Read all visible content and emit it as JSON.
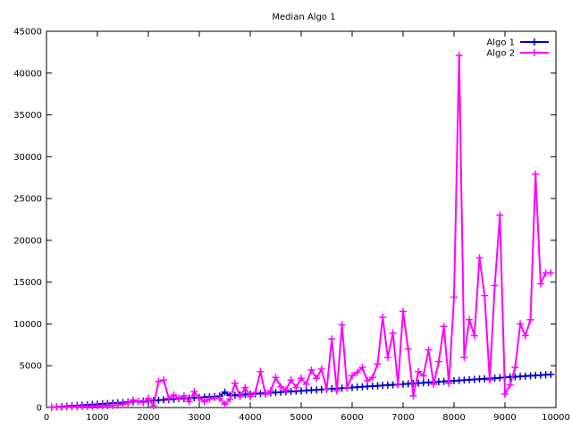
{
  "chart_data": {
    "type": "line",
    "title": "Median Algo 1",
    "xlabel": "",
    "ylabel": "",
    "xlim": [
      0,
      10000
    ],
    "ylim": [
      0,
      45000
    ],
    "x_ticks": [
      0,
      1000,
      2000,
      3000,
      4000,
      5000,
      6000,
      7000,
      8000,
      9000,
      10000
    ],
    "y_ticks": [
      0,
      5000,
      10000,
      15000,
      20000,
      25000,
      30000,
      35000,
      40000,
      45000
    ],
    "grid": false,
    "legend_position": "top-right",
    "series": [
      {
        "name": "Algo 1",
        "color": "#0000cc",
        "marker": "plus",
        "x": [
          100,
          200,
          300,
          400,
          500,
          600,
          700,
          800,
          900,
          1000,
          1100,
          1200,
          1300,
          1400,
          1500,
          1600,
          1700,
          1800,
          1900,
          2000,
          2100,
          2200,
          2300,
          2400,
          2500,
          2600,
          2700,
          2800,
          2900,
          3000,
          3100,
          3200,
          3300,
          3400,
          3500,
          3600,
          3700,
          3800,
          3900,
          4000,
          4100,
          4200,
          4300,
          4400,
          4500,
          4600,
          4700,
          4800,
          4900,
          5000,
          5100,
          5200,
          5300,
          5400,
          5500,
          5600,
          5700,
          5800,
          5900,
          6000,
          6100,
          6200,
          6300,
          6400,
          6500,
          6600,
          6700,
          6800,
          6900,
          7000,
          7100,
          7200,
          7300,
          7400,
          7500,
          7600,
          7700,
          7800,
          7900,
          8000,
          8100,
          8200,
          8300,
          8400,
          8500,
          8600,
          8700,
          8800,
          8900,
          9000,
          9100,
          9200,
          9300,
          9400,
          9500,
          9600,
          9700,
          9800,
          9900
        ],
        "y": [
          40,
          80,
          120,
          160,
          200,
          240,
          280,
          320,
          360,
          400,
          440,
          480,
          520,
          560,
          600,
          640,
          680,
          720,
          760,
          800,
          840,
          880,
          920,
          960,
          1000,
          1040,
          1080,
          1120,
          1160,
          1200,
          1240,
          1280,
          1320,
          1360,
          1850,
          1440,
          1480,
          1520,
          1560,
          1600,
          1640,
          1680,
          1720,
          1760,
          1800,
          1840,
          1880,
          1920,
          1960,
          2000,
          2040,
          2080,
          2120,
          2160,
          2200,
          2240,
          2280,
          2320,
          2360,
          2400,
          2440,
          2480,
          2520,
          2560,
          2600,
          2640,
          2680,
          2720,
          2760,
          2800,
          2840,
          2880,
          2920,
          2960,
          3000,
          3040,
          3080,
          3120,
          3160,
          3200,
          3240,
          3280,
          3320,
          3360,
          3400,
          3440,
          3480,
          3520,
          3560,
          3600,
          3640,
          3680,
          3720,
          3760,
          3800,
          3840,
          3880,
          3920,
          3960
        ]
      },
      {
        "name": "Algo 2",
        "color": "#ff00ff",
        "marker": "plus",
        "x": [
          100,
          200,
          300,
          400,
          500,
          600,
          700,
          800,
          900,
          1000,
          1100,
          1200,
          1300,
          1400,
          1500,
          1600,
          1700,
          1800,
          1900,
          2000,
          2100,
          2200,
          2300,
          2400,
          2500,
          2600,
          2700,
          2800,
          2900,
          3000,
          3100,
          3200,
          3300,
          3400,
          3500,
          3600,
          3700,
          3800,
          3900,
          4000,
          4100,
          4200,
          4300,
          4400,
          4500,
          4600,
          4700,
          4800,
          4900,
          5000,
          5100,
          5200,
          5300,
          5400,
          5500,
          5600,
          5700,
          5800,
          5900,
          6000,
          6100,
          6200,
          6300,
          6400,
          6500,
          6600,
          6700,
          6800,
          6900,
          7000,
          7100,
          7200,
          7300,
          7400,
          7500,
          7600,
          7700,
          7800,
          7900,
          8000,
          8100,
          8200,
          8300,
          8400,
          8500,
          8600,
          8700,
          8800,
          8900,
          9000,
          9100,
          9200,
          9300,
          9400,
          9500,
          9600,
          9700,
          9800,
          9900
        ],
        "y": [
          30,
          60,
          50,
          80,
          100,
          90,
          120,
          150,
          140,
          180,
          200,
          230,
          250,
          300,
          400,
          550,
          900,
          700,
          600,
          1100,
          200,
          3100,
          3300,
          1100,
          1500,
          1100,
          1400,
          700,
          1900,
          1100,
          700,
          1000,
          1200,
          1100,
          400,
          1000,
          2900,
          1300,
          2400,
          1300,
          1800,
          4300,
          1600,
          2000,
          3600,
          2500,
          2100,
          3300,
          2400,
          3500,
          2800,
          4500,
          3500,
          4600,
          2200,
          8200,
          2000,
          9900,
          2400,
          3800,
          4200,
          4800,
          3200,
          3600,
          5200,
          10800,
          6000,
          8900,
          2800,
          11500,
          7000,
          1400,
          4300,
          3800,
          6900,
          2800,
          5500,
          9700,
          2900,
          13200,
          42100,
          6000,
          10500,
          8600,
          17900,
          13400,
          3300,
          14600,
          23000,
          1600,
          2700,
          4800,
          10000,
          8600,
          10500,
          27900,
          14800,
          16100,
          16100
        ]
      }
    ]
  }
}
